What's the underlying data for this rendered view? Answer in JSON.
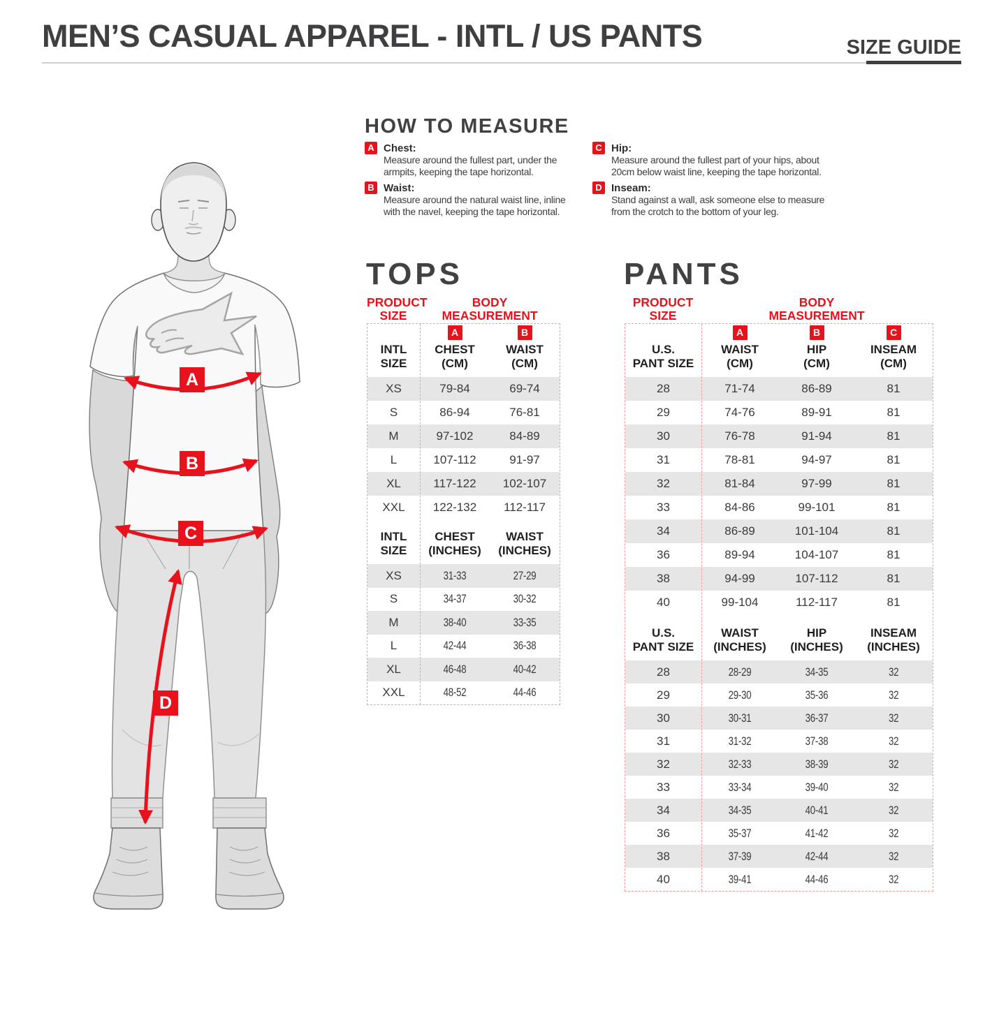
{
  "header": {
    "title": "MEN’S CASUAL APPAREL - INTL / US PANTS",
    "size_guide_label": "SIZE GUIDE"
  },
  "how_to_measure": {
    "heading": "HOW TO MEASURE",
    "columns": [
      {
        "items": [
          {
            "letter": "A",
            "name": "Chest:",
            "lines": [
              "Measure around the fullest part, under the",
              "armpits, keeping the tape horizontal."
            ]
          },
          {
            "letter": "B",
            "name": "Waist:",
            "lines": [
              "Measure around the natural waist line, inline",
              "with the navel, keeping the tape horizontal."
            ]
          }
        ]
      },
      {
        "items": [
          {
            "letter": "C",
            "name": "Hip:",
            "lines": [
              "Measure around the fullest part of your hips, about",
              "20cm below waist line, keeping the tape horizontal."
            ]
          },
          {
            "letter": "D",
            "name": "Inseam:",
            "lines": [
              "Stand against a wall, ask someone else to measure",
              "from the crotch to the bottom of your leg."
            ]
          }
        ]
      }
    ]
  },
  "figure": {
    "markers": [
      "A",
      "B",
      "C",
      "D"
    ]
  },
  "tops": {
    "title": "TOPS",
    "product_size_label": [
      "PRODUCT",
      "SIZE"
    ],
    "body_measurement_label": [
      "BODY",
      "MEASUREMENT"
    ],
    "sections": [
      {
        "size_header": [
          "INTL",
          "SIZE"
        ],
        "columns": [
          {
            "badge": "A",
            "label": [
              "CHEST",
              "(CM)"
            ]
          },
          {
            "badge": "B",
            "label": [
              "WAIST",
              "(CM)"
            ]
          }
        ],
        "condensed_values": false,
        "rows": [
          [
            "XS",
            "79-84",
            "69-74"
          ],
          [
            "S",
            "86-94",
            "76-81"
          ],
          [
            "M",
            "97-102",
            "84-89"
          ],
          [
            "L",
            "107-112",
            "91-97"
          ],
          [
            "XL",
            "117-122",
            "102-107"
          ],
          [
            "XXL",
            "122-132",
            "112-117"
          ]
        ]
      },
      {
        "size_header": [
          "INTL",
          "SIZE"
        ],
        "columns": [
          {
            "badge": "",
            "label": [
              "CHEST",
              "(INCHES)"
            ]
          },
          {
            "badge": "",
            "label": [
              "WAIST",
              "(INCHES)"
            ]
          }
        ],
        "condensed_values": true,
        "rows": [
          [
            "XS",
            "31-33",
            "27-29"
          ],
          [
            "S",
            "34-37",
            "30-32"
          ],
          [
            "M",
            "38-40",
            "33-35"
          ],
          [
            "L",
            "42-44",
            "36-38"
          ],
          [
            "XL",
            "46-48",
            "40-42"
          ],
          [
            "XXL",
            "48-52",
            "44-46"
          ]
        ]
      }
    ]
  },
  "pants": {
    "title": "PANTS",
    "product_size_label": [
      "PRODUCT",
      "SIZE"
    ],
    "body_measurement_label": [
      "BODY",
      "MEASUREMENT"
    ],
    "sections": [
      {
        "size_header": [
          "U.S.",
          "PANT SIZE"
        ],
        "columns": [
          {
            "badge": "A",
            "label": [
              "WAIST",
              "(CM)"
            ]
          },
          {
            "badge": "B",
            "label": [
              "HIP",
              "(CM)"
            ]
          },
          {
            "badge": "C",
            "label": [
              "INSEAM",
              "(CM)"
            ]
          }
        ],
        "condensed_values": false,
        "rows": [
          [
            "28",
            "71-74",
            "86-89",
            "81"
          ],
          [
            "29",
            "74-76",
            "89-91",
            "81"
          ],
          [
            "30",
            "76-78",
            "91-94",
            "81"
          ],
          [
            "31",
            "78-81",
            "94-97",
            "81"
          ],
          [
            "32",
            "81-84",
            "97-99",
            "81"
          ],
          [
            "33",
            "84-86",
            "99-101",
            "81"
          ],
          [
            "34",
            "86-89",
            "101-104",
            "81"
          ],
          [
            "36",
            "89-94",
            "104-107",
            "81"
          ],
          [
            "38",
            "94-99",
            "107-112",
            "81"
          ],
          [
            "40",
            "99-104",
            "112-117",
            "81"
          ]
        ]
      },
      {
        "size_header": [
          "U.S.",
          "PANT SIZE"
        ],
        "columns": [
          {
            "badge": "",
            "label": [
              "WAIST",
              "(INCHES)"
            ]
          },
          {
            "badge": "",
            "label": [
              "HIP",
              "(INCHES)"
            ]
          },
          {
            "badge": "",
            "label": [
              "INSEAM",
              "(INCHES)"
            ]
          }
        ],
        "condensed_values": true,
        "rows": [
          [
            "28",
            "28-29",
            "34-35",
            "32"
          ],
          [
            "29",
            "29-30",
            "35-36",
            "32"
          ],
          [
            "30",
            "30-31",
            "36-37",
            "32"
          ],
          [
            "31",
            "31-32",
            "37-38",
            "32"
          ],
          [
            "32",
            "32-33",
            "38-39",
            "32"
          ],
          [
            "33",
            "33-34",
            "39-40",
            "32"
          ],
          [
            "34",
            "34-35",
            "40-41",
            "32"
          ],
          [
            "36",
            "35-37",
            "41-42",
            "32"
          ],
          [
            "38",
            "37-39",
            "42-44",
            "32"
          ],
          [
            "40",
            "39-41",
            "44-46",
            "32"
          ]
        ]
      }
    ]
  },
  "colors": {
    "accent_red": "#e8121c",
    "table_border_red": "#f29d9d",
    "row_stripe_gray": "#e6e6e6",
    "heading_gray": "#3f3f41"
  }
}
